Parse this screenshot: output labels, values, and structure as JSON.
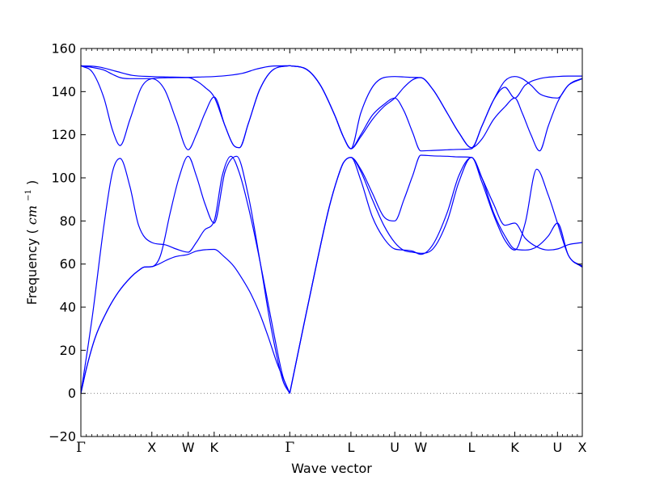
{
  "chart_data": {
    "type": "line",
    "title": "",
    "xlabel": "Wave vector",
    "ylabel": {
      "prefix": "Frequency (",
      "unit": "cm",
      "unit_exp": "−1",
      "suffix": ")"
    },
    "ylim": [
      -20,
      160
    ],
    "yticks": [
      -20,
      0,
      20,
      40,
      60,
      80,
      100,
      120,
      140,
      160
    ],
    "xlim": [
      0,
      8.69
    ],
    "grid": false,
    "zero_line": {
      "y": 0,
      "style": "dotted",
      "color": "#808080"
    },
    "line_color": "#0000ff",
    "high_symmetry_points": [
      {
        "label": "Γ",
        "x": 0.0
      },
      {
        "label": "X",
        "x": 1.23
      },
      {
        "label": "W",
        "x": 1.86
      },
      {
        "label": "K",
        "x": 2.31
      },
      {
        "label": "Γ",
        "x": 3.62
      },
      {
        "label": "L",
        "x": 4.68
      },
      {
        "label": "U",
        "x": 5.44
      },
      {
        "label": "W",
        "x": 5.89
      },
      {
        "label": "L",
        "x": 6.77
      },
      {
        "label": "K",
        "x": 7.52
      },
      {
        "label": "U",
        "x": 8.26
      },
      {
        "label": "X",
        "x": 8.69
      }
    ],
    "series": [
      {
        "x": [
          0.0,
          0.1,
          0.25,
          0.45,
          0.65,
          0.87,
          1.0,
          1.1,
          1.23,
          1.35,
          1.5,
          1.65,
          1.86,
          2.0,
          2.31,
          2.48,
          2.65,
          2.8,
          2.95,
          3.1,
          3.25,
          3.4,
          3.62
        ],
        "y": [
          0,
          12,
          26,
          38,
          47,
          54,
          57,
          58.6,
          58.8,
          60,
          62,
          63.5,
          64.5,
          66,
          66.8,
          63.5,
          59,
          53,
          46,
          37,
          26,
          14,
          0
        ]
      },
      {
        "x": [
          0.0,
          0.1,
          0.25,
          0.45,
          0.65,
          0.87,
          1.0,
          1.1,
          1.23,
          1.38,
          1.55,
          1.7,
          1.86,
          2.0,
          2.15,
          2.31,
          2.5,
          2.7,
          2.9,
          3.1,
          3.3,
          3.5,
          3.62
        ],
        "y": [
          0,
          12,
          26,
          38,
          47,
          54,
          57,
          58.6,
          58.8,
          64,
          84,
          100,
          110,
          101,
          88,
          79,
          103,
          110,
          92,
          62,
          30,
          6,
          0
        ]
      },
      {
        "x": [
          0.0,
          0.2,
          0.4,
          0.55,
          0.68,
          0.85,
          1.0,
          1.23,
          1.45,
          1.65,
          1.86,
          2.0,
          2.15,
          2.31,
          2.45,
          2.6,
          2.75,
          2.95,
          3.15,
          3.35,
          3.5,
          3.62
        ],
        "y": [
          0,
          36,
          78,
          103,
          109,
          96,
          78,
          70,
          69,
          67,
          65.5,
          70,
          76,
          80,
          101,
          110,
          102,
          81,
          55,
          27,
          8,
          0
        ]
      },
      {
        "x": [
          0.0,
          0.2,
          0.4,
          0.55,
          0.68,
          0.85,
          1.05,
          1.23,
          1.45,
          1.65,
          1.86,
          2.0,
          2.15,
          2.31,
          2.5,
          2.65,
          2.75,
          2.9,
          3.1,
          3.35,
          3.62
        ],
        "y": [
          152,
          149,
          137,
          122,
          115,
          127,
          142,
          146,
          146.4,
          146.5,
          146.5,
          145,
          142,
          137.5,
          124,
          115,
          114,
          125,
          141,
          150.5,
          152
        ]
      },
      {
        "x": [
          0.0,
          0.2,
          0.4,
          0.55,
          0.68,
          0.85,
          1.05,
          1.23,
          1.45,
          1.65,
          1.86,
          2.0,
          2.15,
          2.31,
          2.5,
          2.65,
          2.75,
          2.9,
          3.1,
          3.35,
          3.62
        ],
        "y": [
          152,
          151.2,
          150,
          148,
          146.5,
          146,
          146,
          146,
          141,
          127,
          113,
          120,
          130,
          137.5,
          124,
          115,
          114,
          125,
          141,
          150.5,
          152
        ]
      },
      {
        "x": [
          0.0,
          0.3,
          0.6,
          0.9,
          1.23,
          1.5,
          1.86,
          2.1,
          2.31,
          2.55,
          2.8,
          3.05,
          3.3,
          3.62
        ],
        "y": [
          152,
          151.5,
          149.5,
          147.5,
          147,
          146.8,
          146.6,
          146.8,
          147,
          147.5,
          148.5,
          150.5,
          151.8,
          152
        ]
      },
      {
        "x": [
          3.62,
          3.85,
          4.1,
          4.3,
          4.45,
          4.55,
          4.68,
          4.85,
          5.05,
          5.25,
          5.44,
          5.6,
          5.75,
          5.89,
          6.1,
          6.35,
          6.55,
          6.77,
          6.95,
          7.15,
          7.35,
          7.52,
          7.7,
          7.9,
          8.1,
          8.26,
          8.45,
          8.69
        ],
        "y": [
          0,
          30,
          62,
          86,
          100,
          107,
          109.5,
          104,
          93,
          82,
          80,
          90,
          101,
          110.5,
          110.2,
          110,
          109.7,
          109.5,
          100,
          88,
          78,
          79,
          72,
          68,
          66.5,
          67,
          69,
          70
        ]
      },
      {
        "x": [
          3.62,
          3.85,
          4.1,
          4.3,
          4.45,
          4.55,
          4.68,
          4.85,
          5.05,
          5.25,
          5.44,
          5.6,
          5.75,
          5.89,
          6.1,
          6.35,
          6.55,
          6.77,
          6.95,
          7.15,
          7.35,
          7.52,
          7.7,
          7.9,
          8.1,
          8.26,
          8.45,
          8.69
        ],
        "y": [
          0,
          30,
          62,
          86,
          100,
          107,
          109.5,
          103,
          90,
          78,
          70,
          66.3,
          65.5,
          65,
          67,
          80,
          98,
          109.5,
          100,
          84,
          73,
          67,
          66.5,
          68,
          73,
          79,
          64,
          59
        ]
      },
      {
        "x": [
          3.62,
          3.85,
          4.1,
          4.3,
          4.45,
          4.55,
          4.68,
          4.85,
          5.05,
          5.25,
          5.44,
          5.6,
          5.75,
          5.89,
          6.1,
          6.35,
          6.55,
          6.77,
          6.95,
          7.15,
          7.35,
          7.52,
          7.7,
          7.9,
          8.1,
          8.26,
          8.45,
          8.69
        ],
        "y": [
          0,
          30,
          62,
          86,
          100,
          107,
          109.5,
          99,
          82,
          72,
          67,
          66.5,
          66,
          64.5,
          69,
          84,
          101,
          109.5,
          98,
          83,
          71,
          66.5,
          79,
          104,
          92,
          79,
          64,
          58.5
        ]
      },
      {
        "x": [
          3.62,
          3.9,
          4.15,
          4.4,
          4.55,
          4.68,
          4.85,
          5.05,
          5.25,
          5.44,
          5.6,
          5.75,
          5.89,
          6.1,
          6.35,
          6.55,
          6.77,
          6.95,
          7.15,
          7.35,
          7.52,
          7.65,
          7.8,
          7.95,
          8.1,
          8.26,
          8.45,
          8.69
        ],
        "y": [
          152,
          150.5,
          143,
          129,
          119,
          113.5,
          120,
          129,
          134,
          137,
          131,
          121,
          112.5,
          112.7,
          113,
          113.2,
          113.5,
          124,
          136,
          145,
          147,
          146,
          143,
          139,
          137.5,
          137,
          143,
          146
        ]
      },
      {
        "x": [
          3.62,
          3.9,
          4.15,
          4.4,
          4.55,
          4.68,
          4.85,
          5.05,
          5.25,
          5.44,
          5.6,
          5.75,
          5.89,
          6.1,
          6.35,
          6.55,
          6.77,
          6.95,
          7.15,
          7.35,
          7.52,
          7.65,
          7.8,
          7.95,
          8.1,
          8.26,
          8.45,
          8.69
        ],
        "y": [
          152,
          150.5,
          143,
          129,
          119,
          113.5,
          130,
          142,
          146.5,
          147,
          146.8,
          146.6,
          146.5,
          141,
          130,
          121,
          114,
          118,
          127,
          133,
          137,
          130,
          120,
          112.5,
          124,
          135,
          143,
          146.2
        ]
      },
      {
        "x": [
          3.62,
          3.9,
          4.15,
          4.4,
          4.55,
          4.68,
          4.85,
          5.05,
          5.25,
          5.44,
          5.6,
          5.75,
          5.89,
          6.1,
          6.35,
          6.55,
          6.77,
          6.95,
          7.15,
          7.35,
          7.52,
          7.7,
          7.95,
          8.26,
          8.45,
          8.69
        ],
        "y": [
          152,
          150.5,
          143,
          129,
          119,
          113.5,
          119,
          127,
          133,
          137,
          142,
          145.5,
          146.5,
          141,
          130,
          121,
          114,
          124,
          136,
          142,
          137,
          143,
          146,
          147,
          147.2,
          147.2
        ]
      }
    ]
  }
}
